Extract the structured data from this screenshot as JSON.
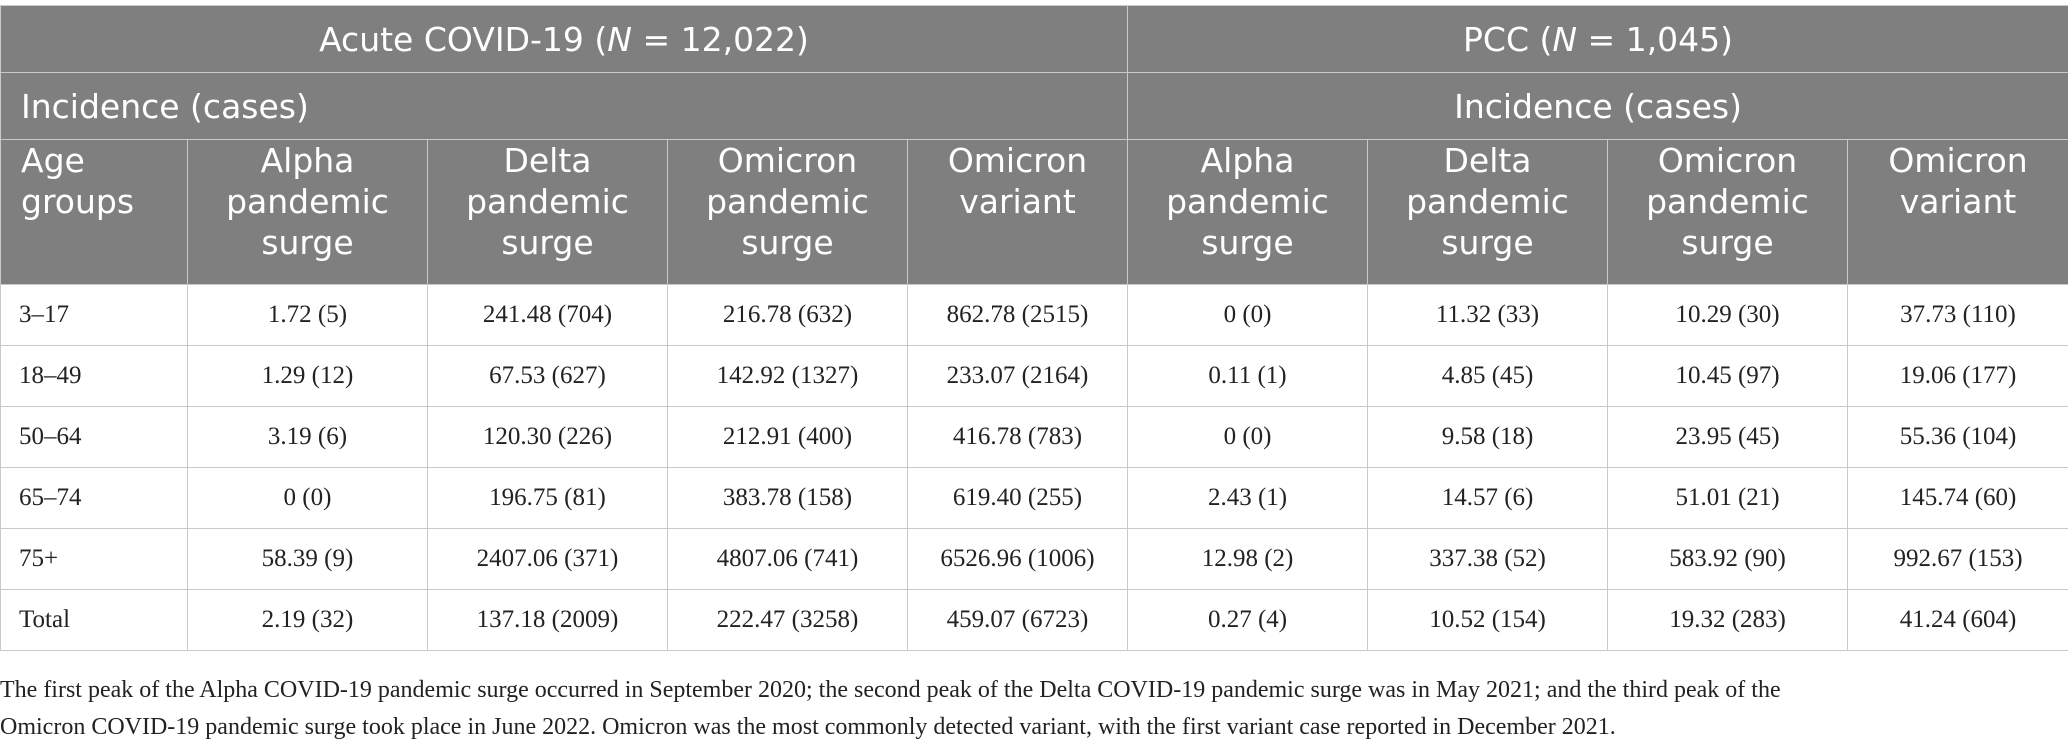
{
  "groups": {
    "acute": {
      "label_prefix": "Acute COVID-19 (",
      "n_symbol": "N",
      "label_suffix": " = 12,022)"
    },
    "pcc": {
      "label_prefix": "PCC (",
      "n_symbol": "N",
      "label_suffix": " = 1,045)"
    }
  },
  "incidence": {
    "acute_label": "Incidence (cases)",
    "pcc_label": "Incidence (cases)"
  },
  "columns": {
    "age_groups": [
      "Age",
      "groups"
    ],
    "acute": [
      [
        "Alpha",
        "pandemic",
        "surge"
      ],
      [
        "Delta",
        "pandemic",
        "surge"
      ],
      [
        "Omicron",
        "pandemic",
        "surge"
      ],
      [
        "Omicron",
        "variant"
      ]
    ],
    "pcc": [
      [
        "Alpha",
        "pandemic",
        "surge"
      ],
      [
        "Delta",
        "pandemic",
        "surge"
      ],
      [
        "Omicron",
        "pandemic",
        "surge"
      ],
      [
        "Omicron",
        "variant"
      ]
    ]
  },
  "rows": [
    {
      "age": "3–17",
      "cells": [
        "1.72 (5)",
        "241.48 (704)",
        "216.78 (632)",
        "862.78 (2515)",
        "0 (0)",
        "11.32 (33)",
        "10.29 (30)",
        "37.73 (110)"
      ]
    },
    {
      "age": "18–49",
      "cells": [
        "1.29 (12)",
        "67.53 (627)",
        "142.92 (1327)",
        "233.07 (2164)",
        "0.11 (1)",
        "4.85 (45)",
        "10.45 (97)",
        "19.06 (177)"
      ]
    },
    {
      "age": "50–64",
      "cells": [
        "3.19 (6)",
        "120.30 (226)",
        "212.91 (400)",
        "416.78 (783)",
        "0 (0)",
        "9.58 (18)",
        "23.95 (45)",
        "55.36 (104)"
      ]
    },
    {
      "age": "65–74",
      "cells": [
        "0 (0)",
        "196.75 (81)",
        "383.78 (158)",
        "619.40 (255)",
        "2.43 (1)",
        "14.57 (6)",
        "51.01 (21)",
        "145.74 (60)"
      ]
    },
    {
      "age": "75+",
      "cells": [
        "58.39 (9)",
        "2407.06 (371)",
        "4807.06 (741)",
        "6526.96 (1006)",
        "12.98 (2)",
        "337.38 (52)",
        "583.92 (90)",
        "992.67 (153)"
      ]
    },
    {
      "age": "Total",
      "cells": [
        "2.19 (32)",
        "137.18 (2009)",
        "222.47 (3258)",
        "459.07 (6723)",
        "0.27 (4)",
        "10.52 (154)",
        "19.32 (283)",
        "41.24 (604)"
      ]
    }
  ],
  "footnote": {
    "line1": "The first peak of the Alpha COVID-19 pandemic surge occurred in September 2020; the second peak of the Delta COVID-19 pandemic surge was in May 2021; and the third peak of the",
    "line2": "Omicron COVID-19 pandemic surge took place in June 2022. Omicron was the most commonly detected variant, with the first variant case reported in December 2021."
  }
}
